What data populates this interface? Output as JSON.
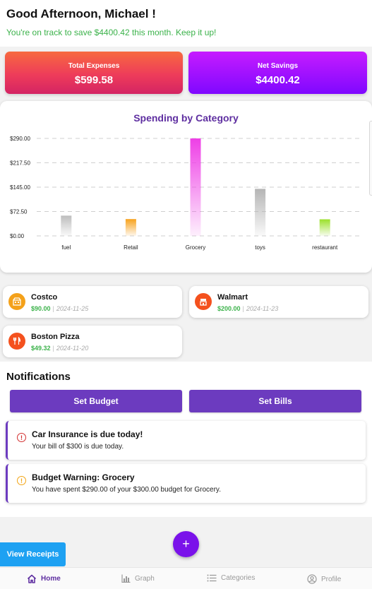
{
  "header": {
    "greeting": "Good Afternoon, Michael !",
    "subtitle": "You're on track to save $4400.42 this month. Keep it up!"
  },
  "summary": {
    "expenses_label": "Total Expenses",
    "expenses_value": "$599.58",
    "savings_label": "Net Savings",
    "savings_value": "$4400.42"
  },
  "chart_data": {
    "type": "bar",
    "title": "Spending by Category",
    "categories": [
      "fuel",
      "Retail",
      "Grocery",
      "toys",
      "restaurant"
    ],
    "values": [
      60.26,
      50,
      290,
      140,
      49.32
    ],
    "colors": [
      "#bdbdbd",
      "#f7a21c",
      "#ee3fe6",
      "#b5b5b5",
      "#9be02a"
    ],
    "ylim": [
      0,
      290
    ],
    "yticks": [
      "$0.00",
      "$72.50",
      "$145.00",
      "$217.50",
      "$290.00"
    ],
    "xlabel": "",
    "ylabel": "",
    "grid": true
  },
  "transactions": [
    {
      "name": "Costco",
      "amount": "$90.00",
      "date": "2024-11-25",
      "icon": "store-icon",
      "color": "#f4a11a"
    },
    {
      "name": "Walmart",
      "amount": "$200.00",
      "date": "2024-11-23",
      "icon": "shop-icon",
      "color": "#f4511e"
    },
    {
      "name": "Boston Pizza",
      "amount": "$49.32",
      "date": "2024-11-20",
      "icon": "restaurant-icon",
      "color": "#f4511e"
    }
  ],
  "notifications": {
    "title": "Notifications",
    "set_budget": "Set Budget",
    "set_bills": "Set Bills",
    "items": [
      {
        "title": "Car Insurance  is due today!",
        "body": "Your bill of $300 is due today.",
        "color": "#d32f2f"
      },
      {
        "title": "Budget Warning: Grocery",
        "body": "You have spent $290.00 of your $300.00 budget for Grocery.",
        "color": "#f2a413"
      }
    ]
  },
  "actions": {
    "fab": "+",
    "view_receipts": "View Receipts"
  },
  "nav": [
    {
      "label": "Home",
      "icon": "home-icon"
    },
    {
      "label": "Graph",
      "icon": "bar-chart-icon"
    },
    {
      "label": "Categories",
      "icon": "list-icon"
    },
    {
      "label": "Profile",
      "icon": "profile-icon"
    }
  ]
}
